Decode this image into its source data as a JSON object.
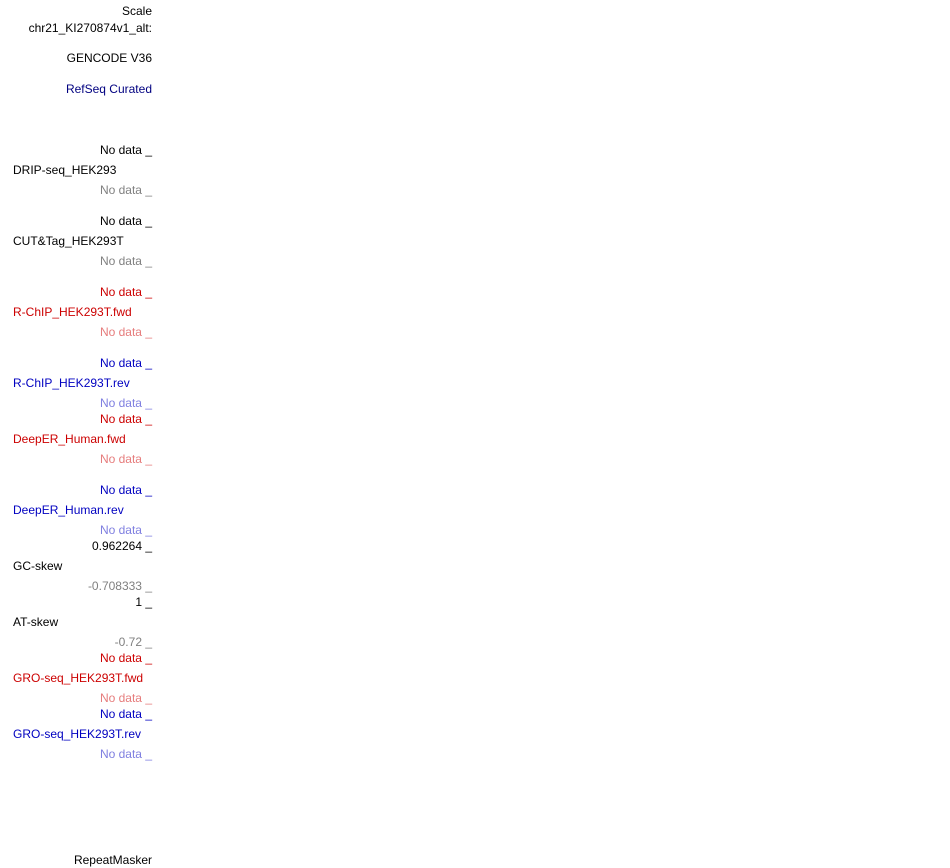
{
  "sidebar": {
    "scale": "Scale",
    "chrom": "chr21_KI270874v1_alt:",
    "gencode": "GENCODE V36",
    "refseq": "RefSeq Curated",
    "drip": {
      "top": "No data _",
      "name": "DRIP-seq_HEK293",
      "bottom": "No data _"
    },
    "cuttag": {
      "top": "No data _",
      "name": "CUT&Tag_HEK293T",
      "bottom": "No data _"
    },
    "rchip_fwd": {
      "top": "No data _",
      "name": "R-ChIP_HEK293T.fwd",
      "bottom": "No data _"
    },
    "rchip_rev": {
      "top": "No data _",
      "name": "R-ChIP_HEK293T.rev",
      "bottom": "No data _"
    },
    "deeper_fwd": {
      "top": "No data _",
      "name": "DeepER_Human.fwd",
      "bottom": "No data _"
    },
    "deeper_rev": {
      "top": "No data _",
      "name": "DeepER_Human.rev",
      "bottom": "No data _"
    },
    "gcskew": {
      "top": "0.962264 _",
      "name": "GC-skew",
      "bottom": "-0.708333 _"
    },
    "atskew": {
      "top": "1 _",
      "name": "AT-skew",
      "bottom": "-0.72 _"
    },
    "gro_fwd": {
      "top": "No data _",
      "name": "GRO-seq_HEK293T.fwd",
      "bottom": "No data _"
    },
    "gro_rev": {
      "top": "No data _",
      "name": "GRO-seq_HEK293T.rev",
      "bottom": "No data _"
    },
    "repeatmasker": "RepeatMasker"
  },
  "colors": {
    "black": "#000000",
    "gray": "#808080",
    "red": "#cc0000",
    "pink": "#e67c7c",
    "blue": "#0000c0",
    "lavender": "#7f7fe0",
    "navy": "#000080"
  }
}
